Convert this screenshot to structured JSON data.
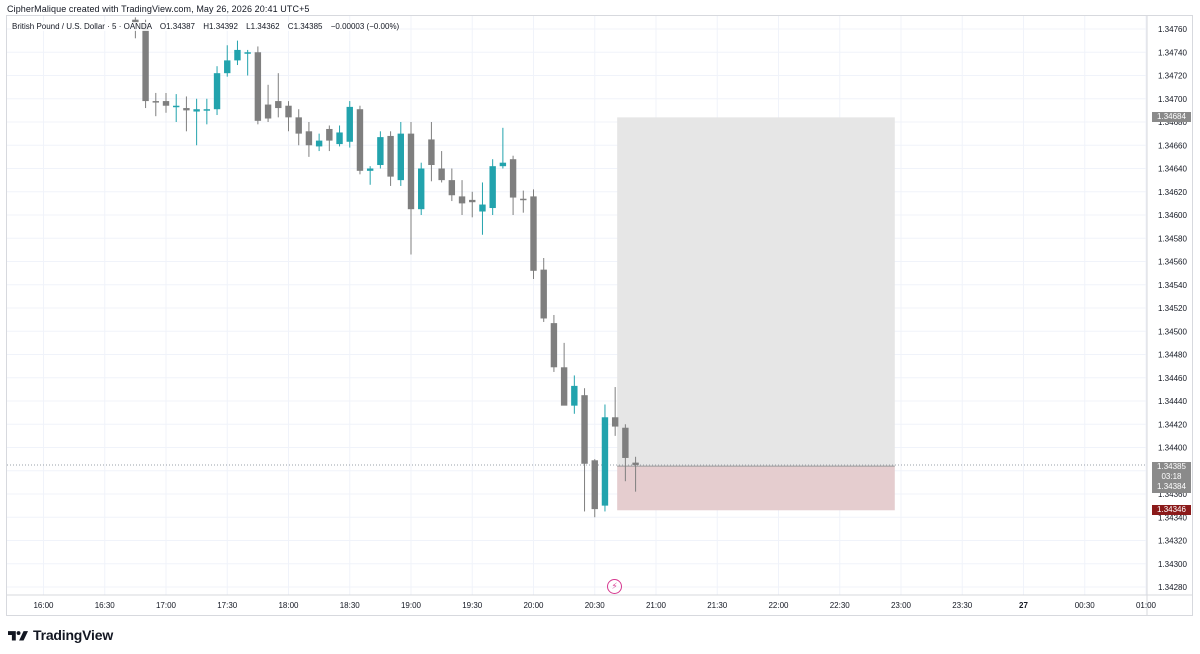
{
  "header": {
    "attribution": "CipherMalique created with TradingView.com, May 26, 2026 20:41 UTC+5"
  },
  "symbol": {
    "name": "British Pound / U.S. Dollar · 5 · OANDA",
    "open_label": "O",
    "open": "1.34387",
    "high_label": "H",
    "high": "1.34392",
    "low_label": "L",
    "low": "1.34362",
    "close_label": "C",
    "close": "1.34385",
    "change": "−0.00003 (−0.00%)"
  },
  "price_axis": {
    "labels": [
      "1.34760",
      "1.34740",
      "1.34720",
      "1.34700",
      "1.34680",
      "1.34660",
      "1.34640",
      "1.34620",
      "1.34600",
      "1.34580",
      "1.34560",
      "1.34540",
      "1.34520",
      "1.34500",
      "1.34480",
      "1.34460",
      "1.34440",
      "1.34420",
      "1.34400",
      "1.34380",
      "1.34360",
      "1.34340",
      "1.34320",
      "1.34300",
      "1.34280"
    ],
    "tags": {
      "target": "1.34684",
      "last_price": "1.34385",
      "countdown": "03:18",
      "position_entry": "1.34384",
      "stop": "1.34346"
    }
  },
  "time_axis": {
    "labels": [
      "16:00",
      "16:30",
      "17:00",
      "17:30",
      "18:00",
      "18:30",
      "19:00",
      "19:30",
      "20:00",
      "20:30",
      "21:00",
      "21:30",
      "22:00",
      "22:30",
      "23:00",
      "23:30",
      "27",
      "00:30",
      "01:00"
    ]
  },
  "footer": {
    "brand": "TradingView"
  },
  "colors": {
    "bull": "#22a3ad",
    "bear": "#7f7f7f",
    "target_zone": "#e6e6e6",
    "stop_zone": "#e5cdcf",
    "stop_tag": "#8b1a1a",
    "grid": "#f0f3fa"
  },
  "chart_data": {
    "type": "candlestick",
    "interval": "5m",
    "ylim": [
      1.3427,
      1.3477
    ],
    "candles": [
      {
        "t": "16:45",
        "o": 1.34768,
        "h": 1.3477,
        "l": 1.34752,
        "c": 1.34765
      },
      {
        "t": "16:50",
        "o": 1.34765,
        "h": 1.34768,
        "l": 1.34692,
        "c": 1.34698
      },
      {
        "t": "16:55",
        "o": 1.34698,
        "h": 1.34705,
        "l": 1.34685,
        "c": 1.34697
      },
      {
        "t": "17:00",
        "o": 1.34698,
        "h": 1.34705,
        "l": 1.34688,
        "c": 1.34694
      },
      {
        "t": "17:05",
        "o": 1.34694,
        "h": 1.34704,
        "l": 1.3468,
        "c": 1.34694
      },
      {
        "t": "17:10",
        "o": 1.34692,
        "h": 1.34702,
        "l": 1.34672,
        "c": 1.3469
      },
      {
        "t": "17:15",
        "o": 1.34689,
        "h": 1.347,
        "l": 1.3466,
        "c": 1.34691
      },
      {
        "t": "17:20",
        "o": 1.34691,
        "h": 1.347,
        "l": 1.34678,
        "c": 1.34691
      },
      {
        "t": "17:25",
        "o": 1.34691,
        "h": 1.34728,
        "l": 1.34686,
        "c": 1.34722
      },
      {
        "t": "17:30",
        "o": 1.34722,
        "h": 1.34746,
        "l": 1.34719,
        "c": 1.34733
      },
      {
        "t": "17:35",
        "o": 1.34733,
        "h": 1.3475,
        "l": 1.34729,
        "c": 1.34742
      },
      {
        "t": "17:40",
        "o": 1.3474,
        "h": 1.34742,
        "l": 1.3472,
        "c": 1.3474
      },
      {
        "t": "17:45",
        "o": 1.3474,
        "h": 1.34745,
        "l": 1.34678,
        "c": 1.34681
      },
      {
        "t": "17:50",
        "o": 1.34695,
        "h": 1.34712,
        "l": 1.3468,
        "c": 1.34683
      },
      {
        "t": "17:55",
        "o": 1.34698,
        "h": 1.34722,
        "l": 1.34684,
        "c": 1.34692
      },
      {
        "t": "18:00",
        "o": 1.34694,
        "h": 1.34698,
        "l": 1.34672,
        "c": 1.34684
      },
      {
        "t": "18:05",
        "o": 1.34684,
        "h": 1.34691,
        "l": 1.3466,
        "c": 1.3467
      },
      {
        "t": "18:10",
        "o": 1.34672,
        "h": 1.3468,
        "l": 1.3465,
        "c": 1.3466
      },
      {
        "t": "18:15",
        "o": 1.34659,
        "h": 1.3467,
        "l": 1.34655,
        "c": 1.34664
      },
      {
        "t": "18:20",
        "o": 1.34674,
        "h": 1.34677,
        "l": 1.34655,
        "c": 1.34664
      },
      {
        "t": "18:25",
        "o": 1.34661,
        "h": 1.34677,
        "l": 1.34659,
        "c": 1.34671
      },
      {
        "t": "18:30",
        "o": 1.34663,
        "h": 1.34698,
        "l": 1.34658,
        "c": 1.34693
      },
      {
        "t": "18:35",
        "o": 1.34691,
        "h": 1.34694,
        "l": 1.34635,
        "c": 1.34638
      },
      {
        "t": "18:40",
        "o": 1.34638,
        "h": 1.34642,
        "l": 1.34626,
        "c": 1.3464
      },
      {
        "t": "18:45",
        "o": 1.34643,
        "h": 1.34672,
        "l": 1.3464,
        "c": 1.34667
      },
      {
        "t": "18:50",
        "o": 1.34668,
        "h": 1.34672,
        "l": 1.34625,
        "c": 1.34633
      },
      {
        "t": "18:55",
        "o": 1.3463,
        "h": 1.3468,
        "l": 1.34625,
        "c": 1.3467
      },
      {
        "t": "19:00",
        "o": 1.3467,
        "h": 1.3468,
        "l": 1.34566,
        "c": 1.34605
      },
      {
        "t": "19:05",
        "o": 1.34605,
        "h": 1.34645,
        "l": 1.346,
        "c": 1.3464
      },
      {
        "t": "19:10",
        "o": 1.34665,
        "h": 1.3468,
        "l": 1.34629,
        "c": 1.34643
      },
      {
        "t": "19:15",
        "o": 1.3464,
        "h": 1.34655,
        "l": 1.34628,
        "c": 1.3463
      },
      {
        "t": "19:20",
        "o": 1.3463,
        "h": 1.3464,
        "l": 1.34612,
        "c": 1.34617
      },
      {
        "t": "19:25",
        "o": 1.34616,
        "h": 1.3463,
        "l": 1.346,
        "c": 1.3461
      },
      {
        "t": "19:30",
        "o": 1.34613,
        "h": 1.3462,
        "l": 1.34598,
        "c": 1.34611
      },
      {
        "t": "19:35",
        "o": 1.34603,
        "h": 1.34628,
        "l": 1.34583,
        "c": 1.34609
      },
      {
        "t": "19:40",
        "o": 1.34606,
        "h": 1.34648,
        "l": 1.346,
        "c": 1.34642
      },
      {
        "t": "19:45",
        "o": 1.34642,
        "h": 1.34675,
        "l": 1.3464,
        "c": 1.34645
      },
      {
        "t": "19:50",
        "o": 1.34648,
        "h": 1.34651,
        "l": 1.346,
        "c": 1.34615
      },
      {
        "t": "19:55",
        "o": 1.34614,
        "h": 1.34621,
        "l": 1.34602,
        "c": 1.34613
      },
      {
        "t": "20:00",
        "o": 1.34616,
        "h": 1.34622,
        "l": 1.34545,
        "c": 1.34552
      },
      {
        "t": "20:05",
        "o": 1.34553,
        "h": 1.34563,
        "l": 1.34508,
        "c": 1.34511
      },
      {
        "t": "20:10",
        "o": 1.34507,
        "h": 1.34514,
        "l": 1.34465,
        "c": 1.34469
      },
      {
        "t": "20:15",
        "o": 1.34469,
        "h": 1.3449,
        "l": 1.34438,
        "c": 1.34436
      },
      {
        "t": "20:20",
        "o": 1.34436,
        "h": 1.34462,
        "l": 1.34429,
        "c": 1.34453
      },
      {
        "t": "20:25",
        "o": 1.34445,
        "h": 1.34451,
        "l": 1.34345,
        "c": 1.34386
      },
      {
        "t": "20:30",
        "o": 1.34389,
        "h": 1.3439,
        "l": 1.3434,
        "c": 1.34347
      },
      {
        "t": "20:35",
        "o": 1.3435,
        "h": 1.34437,
        "l": 1.34345,
        "c": 1.34426
      },
      {
        "t": "20:40",
        "o": 1.34426,
        "h": 1.34452,
        "l": 1.3441,
        "c": 1.34418
      },
      {
        "t": "20:45",
        "o": 1.34417,
        "h": 1.3442,
        "l": 1.34371,
        "c": 1.34391
      },
      {
        "t": "20:50",
        "o": 1.34387,
        "h": 1.34392,
        "l": 1.34362,
        "c": 1.34385
      }
    ],
    "position": {
      "type": "long",
      "entry": 1.34384,
      "target": 1.34684,
      "stop": 1.34346,
      "start": "20:40",
      "end": "22:55"
    },
    "last_price": 1.34385
  }
}
